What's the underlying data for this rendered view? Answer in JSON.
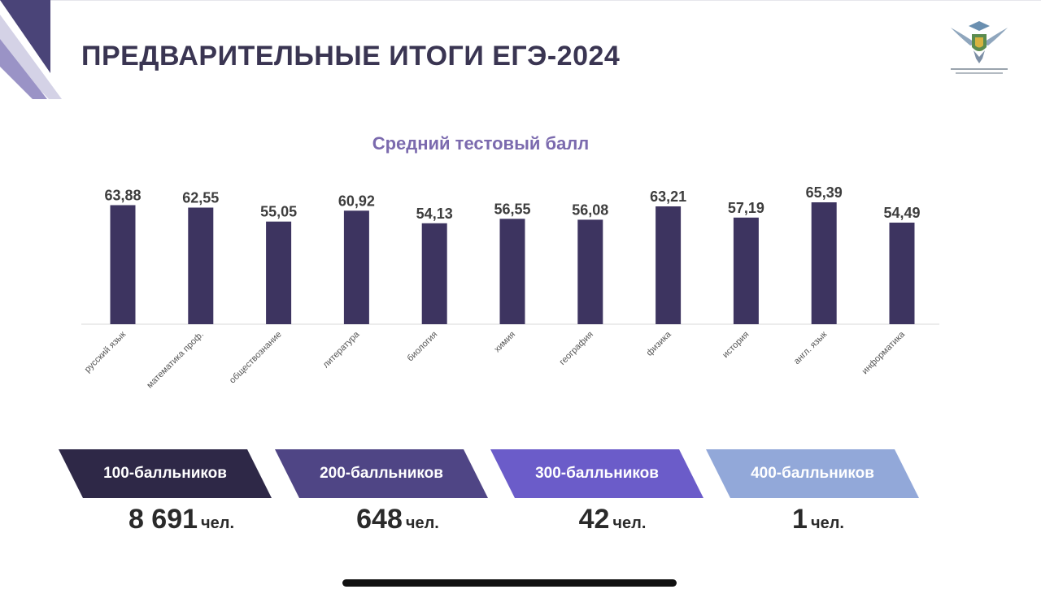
{
  "slide": {
    "title": "ПРЕДВАРИТЕЛЬНЫЕ ИТОГИ ЕГЭ-2024"
  },
  "chart_data": {
    "type": "bar",
    "title": "Средний тестовый балл",
    "categories": [
      "русский язык",
      "математика проф.",
      "обществознание",
      "литература",
      "биология",
      "химия",
      "география",
      "физика",
      "история",
      "англ. язык",
      "информатика"
    ],
    "values": [
      63.88,
      62.55,
      55.05,
      60.92,
      54.13,
      56.55,
      56.08,
      63.21,
      57.19,
      65.39,
      54.49
    ],
    "value_labels": [
      "63,88",
      "62,55",
      "55,05",
      "60,92",
      "54,13",
      "56,55",
      "56,08",
      "63,21",
      "57,19",
      "65,39",
      "54,49"
    ],
    "bar_color": "#3d3460",
    "xlabel": "",
    "ylabel": "",
    "grid": false,
    "legend": "none"
  },
  "stats": [
    {
      "label": "100-балльников",
      "count": "8 691",
      "unit": "чел.",
      "color": "#2e2847"
    },
    {
      "label": "200-балльников",
      "count": "648",
      "unit": "чел.",
      "color": "#4f4585"
    },
    {
      "label": "300-балльников",
      "count": "42",
      "unit": "чел.",
      "color": "#6b5cc9"
    },
    {
      "label": "400-балльников",
      "count": "1",
      "unit": "чел.",
      "color": "#92a8d9"
    }
  ]
}
